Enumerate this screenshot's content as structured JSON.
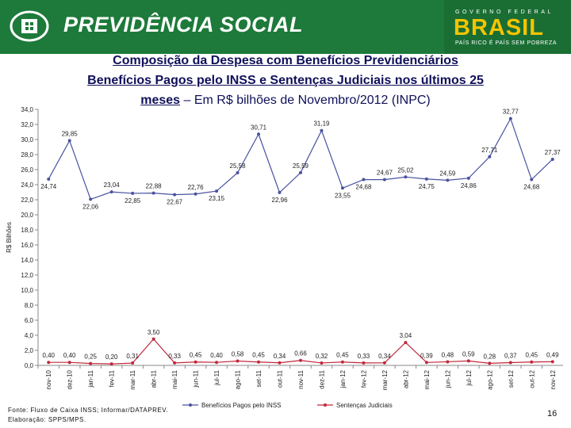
{
  "header": {
    "org_name": "PREVIDÊNCIA SOCIAL",
    "gov_top": "GOVERNO FEDERAL",
    "gov_name": "BRASIL",
    "gov_slogan": "PAÍS RICO É PAÍS SEM POBREZA"
  },
  "slide": {
    "title_line1": "Composição da Despesa com Benefícios Previdenciários",
    "title_line2": "Benefícios Pagos pelo INSS e Sentenças Judiciais nos últimos 25",
    "title_line3_bold": "meses",
    "title_line3_rest": " – Em R$ bilhões de Novembro/2012 (INPC)",
    "source": "Fonte: Fluxo de Caixa INSS; Informar/DATAPREV.",
    "prepared_by": "Elaboração: SPPS/MPS.",
    "page_number": "16"
  },
  "chart_data": {
    "type": "line",
    "categories": [
      "nov-10",
      "dez-10",
      "jan-11",
      "fev-11",
      "mar-11",
      "abr-11",
      "mai-11",
      "jun-11",
      "jul-11",
      "ago-11",
      "set-11",
      "out-11",
      "nov-11",
      "dez-11",
      "jan-12",
      "fev-12",
      "mar-12",
      "abr-12",
      "mai-12",
      "jun-12",
      "jul-12",
      "ago-12",
      "set-12",
      "out-12",
      "nov-12"
    ],
    "ylabel": "R$ Bilhões",
    "ylim": [
      0,
      34
    ],
    "ytick_labels": [
      "0,0",
      "2,0",
      "4,0",
      "6,0",
      "8,0",
      "10,0",
      "12,0",
      "14,0",
      "16,0",
      "18,0",
      "20,0",
      "22,0",
      "24,0",
      "26,0",
      "28,0",
      "30,0",
      "32,0",
      "34,0"
    ],
    "series": [
      {
        "name": "Benefícios Pagos pelo INSS",
        "color": "#4a52a0",
        "values": [
          24.74,
          29.85,
          22.06,
          23.04,
          22.85,
          22.88,
          22.67,
          22.76,
          23.15,
          25.58,
          30.71,
          22.96,
          25.59,
          31.19,
          23.55,
          24.68,
          24.67,
          25.02,
          24.75,
          24.59,
          24.86,
          27.71,
          32.77,
          24.68,
          27.37
        ],
        "labels": [
          "24,74",
          "29,85",
          "22,06",
          "23,04",
          "22,85",
          "22,88",
          "22,67",
          "22,76",
          "23,15",
          "25,58",
          "30,71",
          "22,96",
          "25,59",
          "31,19",
          "23,55",
          "24,68",
          "24,67",
          "25,02",
          "24,75",
          "24,59",
          "24,86",
          "27,71",
          "32,77",
          "24,68",
          "27,37"
        ],
        "label_pos": [
          "below",
          "above",
          "below",
          "above",
          "below",
          "above",
          "below",
          "above",
          "below",
          "above",
          "above",
          "below",
          "above",
          "above",
          "below",
          "below",
          "above",
          "above",
          "below",
          "above",
          "below",
          "above",
          "above",
          "below",
          "above"
        ]
      },
      {
        "name": "Sentenças Judiciais",
        "color": "#c0283c",
        "values": [
          0.4,
          0.4,
          0.25,
          0.2,
          0.31,
          3.5,
          0.33,
          0.45,
          0.4,
          0.58,
          0.45,
          0.34,
          0.66,
          0.32,
          0.45,
          0.33,
          0.34,
          3.04,
          0.39,
          0.48,
          0.59,
          0.28,
          0.37,
          0.45,
          0.49
        ],
        "labels": [
          "0,40",
          "0,40",
          "0,25",
          "0,20",
          "0,31",
          "3,50",
          "0,33",
          "0,45",
          "0,40",
          "0,58",
          "0,45",
          "0,34",
          "0,66",
          "0,32",
          "0,45",
          "0,33",
          "0,34",
          "3,04",
          "0,39",
          "0,48",
          "0,59",
          "0,28",
          "0,37",
          "0,45",
          "0,49"
        ]
      }
    ],
    "legend_position": "bottom",
    "grid": false
  }
}
